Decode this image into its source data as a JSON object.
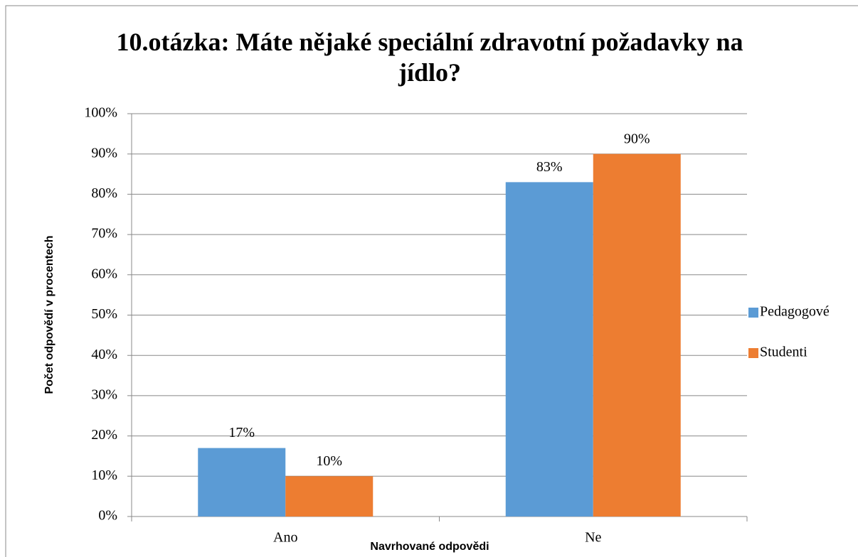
{
  "chart_data": {
    "type": "bar",
    "title": "10.otázka: Máte nějaké speciální zdravotní požadavky na jídlo?",
    "x_label": "Navrhované odpovědi",
    "y_label": "Počet odpovědí v procentech",
    "categories": [
      "Ano",
      "Ne"
    ],
    "series": [
      {
        "name": "Pedagogové",
        "color": "#5b9bd5",
        "values": [
          17,
          83
        ],
        "value_labels": [
          "17%",
          "83%"
        ]
      },
      {
        "name": "Studenti",
        "color": "#ed7d31",
        "values": [
          10,
          90
        ],
        "value_labels": [
          "10%",
          "90%"
        ]
      }
    ],
    "ylim": [
      0,
      100
    ],
    "yticks": [
      {
        "value": 0,
        "label": "0%"
      },
      {
        "value": 10,
        "label": "10%"
      },
      {
        "value": 20,
        "label": "20%"
      },
      {
        "value": 30,
        "label": "30%"
      },
      {
        "value": 40,
        "label": "40%"
      },
      {
        "value": 50,
        "label": "50%"
      },
      {
        "value": 60,
        "label": "60%"
      },
      {
        "value": 70,
        "label": "70%"
      },
      {
        "value": 80,
        "label": "80%"
      },
      {
        "value": 90,
        "label": "90%"
      },
      {
        "value": 100,
        "label": "100%"
      }
    ],
    "grid": true,
    "legend": "right"
  }
}
